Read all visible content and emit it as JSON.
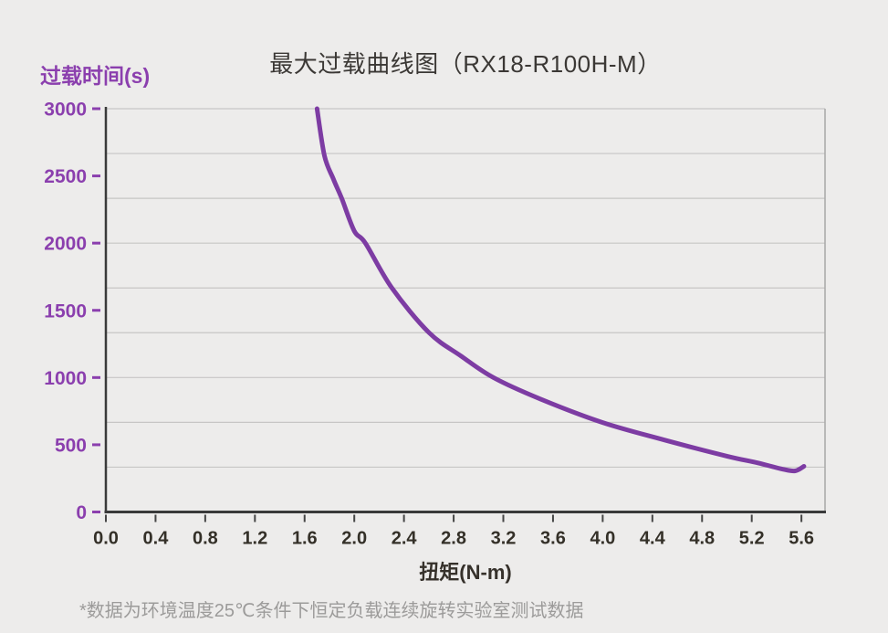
{
  "page": {
    "background": "#EDECEB"
  },
  "header": {
    "title": "最大过载曲线图（RX18-R100H-M）"
  },
  "colors": {
    "accent_purple": "#8B3FAE",
    "curve_purple": "#7D3CA3",
    "axis_dark": "#3A3A3A",
    "gridline": "#C7C6C5",
    "plot_right_border": "#A8A8A8",
    "x_tick_mark": "#454545",
    "title_text": "#3B3835",
    "x_tick_text": "#343028",
    "footnote_text": "#9C9B9A",
    "background": "#EDECEB"
  },
  "chart_data": {
    "type": "line",
    "title": "最大过载曲线图（RX18-R100H-M）",
    "xlabel": "扭矩(N-m)",
    "ylabel": "过载时间(s)",
    "xlim": [
      0,
      5.79
    ],
    "ylim": [
      0,
      3000
    ],
    "x_ticks": [
      "0.0",
      "0.4",
      "0.8",
      "1.2",
      "1.6",
      "2.0",
      "2.4",
      "2.8",
      "3.2",
      "3.6",
      "4.0",
      "4.4",
      "4.8",
      "5.2",
      "5.6"
    ],
    "x_tick_values": [
      0,
      0.4,
      0.8,
      1.2,
      1.6,
      2.0,
      2.4,
      2.8,
      3.2,
      3.6,
      4.0,
      4.4,
      4.8,
      5.2,
      5.6
    ],
    "y_ticks": [
      "3000",
      "2500",
      "2000",
      "1500",
      "1000",
      "500",
      "0"
    ],
    "y_tick_values": [
      3000,
      2500,
      2000,
      1500,
      1000,
      500,
      0
    ],
    "grid": {
      "horizontal_divisions": 9,
      "vertical_gridlines": false,
      "right_border": true
    },
    "legend": "none",
    "series": [
      {
        "name": "最大过载曲线",
        "color": "#7D3CA3",
        "points": [
          [
            1.7,
            3000
          ],
          [
            1.76,
            2650
          ],
          [
            1.83,
            2480
          ],
          [
            1.9,
            2330
          ],
          [
            2.0,
            2090
          ],
          [
            2.09,
            2000
          ],
          [
            2.3,
            1670
          ],
          [
            2.6,
            1335
          ],
          [
            2.86,
            1160
          ],
          [
            3.12,
            1000
          ],
          [
            3.5,
            840
          ],
          [
            4.0,
            665
          ],
          [
            4.5,
            535
          ],
          [
            5.0,
            415
          ],
          [
            5.25,
            365
          ],
          [
            5.45,
            318
          ],
          [
            5.55,
            306
          ],
          [
            5.62,
            340
          ]
        ]
      }
    ]
  },
  "footnote": {
    "text": "*数据为环境温度25℃条件下恒定负载连续旋转实验室测试数据"
  }
}
